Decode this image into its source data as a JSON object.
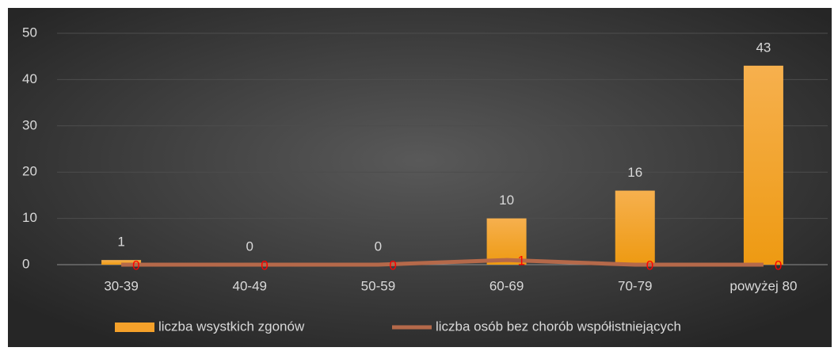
{
  "chart_data": {
    "type": "bar",
    "categories": [
      "30-39",
      "40-49",
      "50-59",
      "60-69",
      "70-79",
      "powyżej 80"
    ],
    "series": [
      {
        "name": "liczba wsystkich zgonów",
        "type": "bar",
        "color": "#f5a12a",
        "label_color": "#d9d9d9",
        "values": [
          1,
          0,
          0,
          10,
          16,
          43
        ]
      },
      {
        "name": "liczba osób bez chorób współistniejących",
        "type": "line",
        "color": "#b5694a",
        "label_color": "#ff0000",
        "values": [
          0,
          0,
          0,
          1,
          0,
          0
        ]
      }
    ],
    "ylim": [
      0,
      50
    ],
    "yticks": [
      0,
      10,
      20,
      30,
      40,
      50
    ],
    "grid": true,
    "legend": "bottom"
  }
}
